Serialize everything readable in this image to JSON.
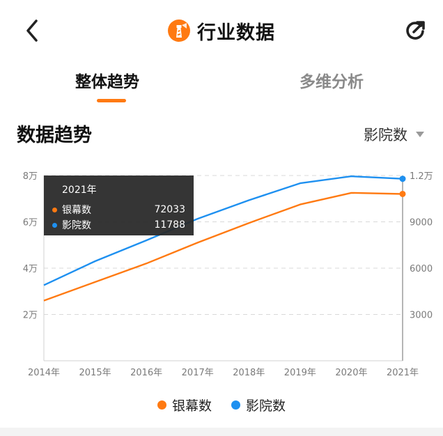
{
  "nav": {
    "back_icon": "chevron-left-icon",
    "logo_icon": "lighthouse-logo-icon",
    "title": "行业数据",
    "refresh_icon": "refresh-icon"
  },
  "tabs": [
    {
      "label": "整体趋势",
      "active": true
    },
    {
      "label": "多维分析",
      "active": false
    }
  ],
  "section": {
    "title": "数据趋势",
    "metric_select": {
      "value": "影院数"
    }
  },
  "tooltip": {
    "title": "2021年",
    "rows": [
      {
        "name": "银幕数",
        "value": "72033",
        "color": "#ff7a12"
      },
      {
        "name": "影院数",
        "value": "11788",
        "color": "#1e90f0"
      }
    ]
  },
  "chart_data": {
    "type": "line",
    "x": [
      "2014年",
      "2015年",
      "2016年",
      "2017年",
      "2018年",
      "2019年",
      "2020年",
      "2021年"
    ],
    "y_left": {
      "ticks": [
        "2万",
        "4万",
        "6万",
        "8万"
      ],
      "range": [
        0,
        80000
      ],
      "tick_values": [
        20000,
        40000,
        60000,
        80000
      ]
    },
    "y_right": {
      "ticks": [
        "3000",
        "6000",
        "9000",
        "1.2万"
      ],
      "range": [
        0,
        12000
      ],
      "tick_values": [
        3000,
        6000,
        9000,
        12000
      ]
    },
    "grid": true,
    "legend_position": "bottom",
    "series": [
      {
        "name": "银幕数",
        "axis": "left",
        "color": "#ff7a12",
        "values": [
          26000,
          34000,
          42000,
          51000,
          59500,
          67500,
          72500,
          72033
        ]
      },
      {
        "name": "影院数",
        "axis": "right",
        "color": "#1e90f0",
        "values": [
          4900,
          6450,
          7800,
          9200,
          10400,
          11500,
          11950,
          11788
        ]
      }
    ],
    "highlight_index": 7
  },
  "legend": [
    {
      "name": "银幕数",
      "color": "#ff7a12"
    },
    {
      "name": "影院数",
      "color": "#1e90f0"
    }
  ]
}
